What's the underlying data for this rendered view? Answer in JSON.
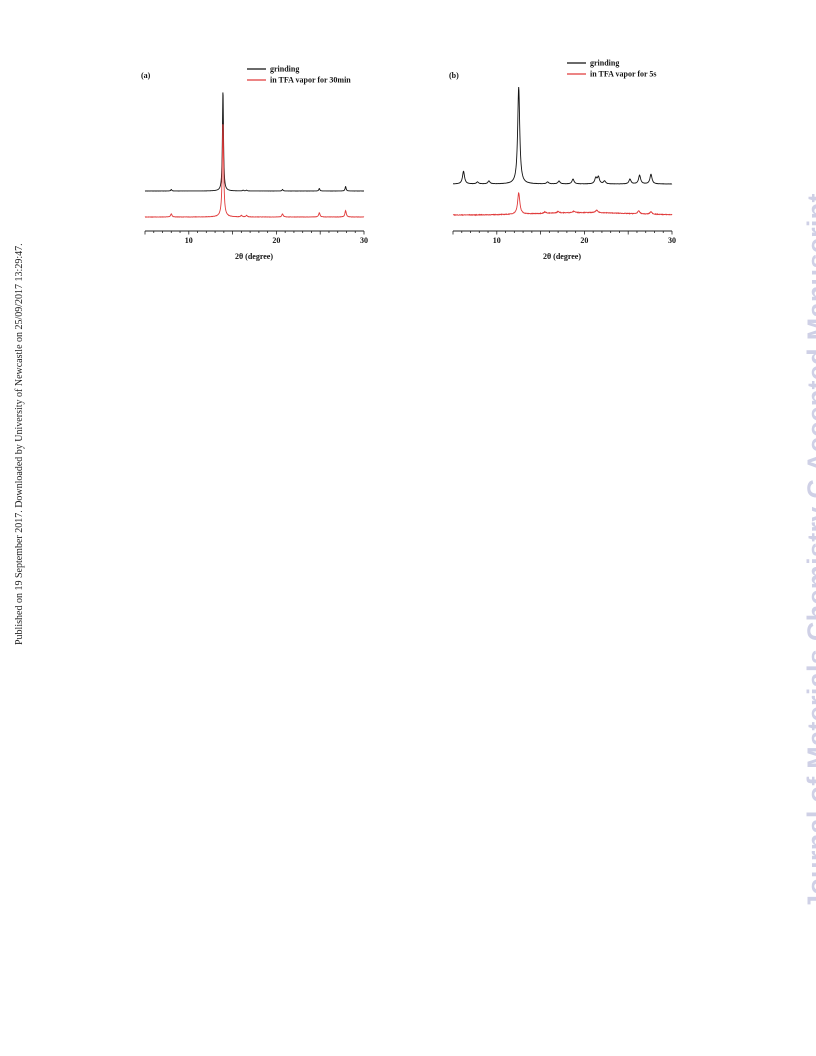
{
  "side_text_left": "Published on 19 September 2017. Downloaded by University of Newcastle on 25/09/2017 13:29:47.",
  "side_text_right": "Journal of Materials Chemistry C Accepted Manuscript",
  "colors": {
    "series_black": "#111111",
    "series_red": "#e03a3a",
    "axis": "#222222"
  },
  "chart_data": [
    {
      "type": "line",
      "panel_label": "(a)",
      "xlabel": "2θ (degree)",
      "ylabel": "",
      "xlim": [
        5,
        30
      ],
      "xticks": [
        10,
        20,
        30
      ],
      "legend_position": "top",
      "series": [
        {
          "name": "grinding",
          "color": "#111111",
          "baseline": 0,
          "peaks": [
            [
              8.0,
              1.5
            ],
            [
              13.9,
              100
            ],
            [
              16.2,
              0.8
            ],
            [
              16.6,
              0.8
            ],
            [
              20.7,
              1.5
            ],
            [
              24.9,
              2.5
            ],
            [
              27.9,
              4.5
            ]
          ],
          "width": 0.07,
          "noise": 0.05
        },
        {
          "name": "in TFA vapor for 30min",
          "color": "#e03a3a",
          "baseline": 0,
          "peaks": [
            [
              8.0,
              3
            ],
            [
              13.9,
              88
            ],
            [
              16.0,
              1.5
            ],
            [
              16.6,
              1.5
            ],
            [
              20.7,
              3
            ],
            [
              24.9,
              4
            ],
            [
              27.9,
              6
            ]
          ],
          "width": 0.09,
          "noise": 0.3
        }
      ]
    },
    {
      "type": "line",
      "panel_label": "(b)",
      "xlabel": "2θ (degree)",
      "ylabel": "",
      "xlim": [
        5,
        30
      ],
      "xticks": [
        10,
        20,
        30
      ],
      "legend_position": "top",
      "series": [
        {
          "name": "grinding",
          "color": "#111111",
          "baseline": 0,
          "peaks": [
            [
              6.2,
              13
            ],
            [
              7.8,
              2
            ],
            [
              9.1,
              3
            ],
            [
              12.5,
              100
            ],
            [
              15.8,
              2
            ],
            [
              17.1,
              3
            ],
            [
              18.7,
              5
            ],
            [
              21.3,
              6
            ],
            [
              21.6,
              7
            ],
            [
              22.3,
              3
            ],
            [
              25.2,
              5
            ],
            [
              26.3,
              9
            ],
            [
              27.6,
              10
            ]
          ],
          "width": 0.14,
          "noise": 0.2
        },
        {
          "name": "in TFA vapor for 5s",
          "color": "#e03a3a",
          "baseline": 0,
          "peaks": [
            [
              12.5,
              22
            ],
            [
              15.5,
              1.5
            ],
            [
              17.0,
              1.5
            ],
            [
              18.8,
              1.5
            ],
            [
              21.4,
              2.5
            ],
            [
              26.2,
              3
            ],
            [
              27.6,
              2.5
            ]
          ],
          "width": 0.15,
          "noise": 0.6,
          "hump": 2.5
        }
      ]
    }
  ]
}
